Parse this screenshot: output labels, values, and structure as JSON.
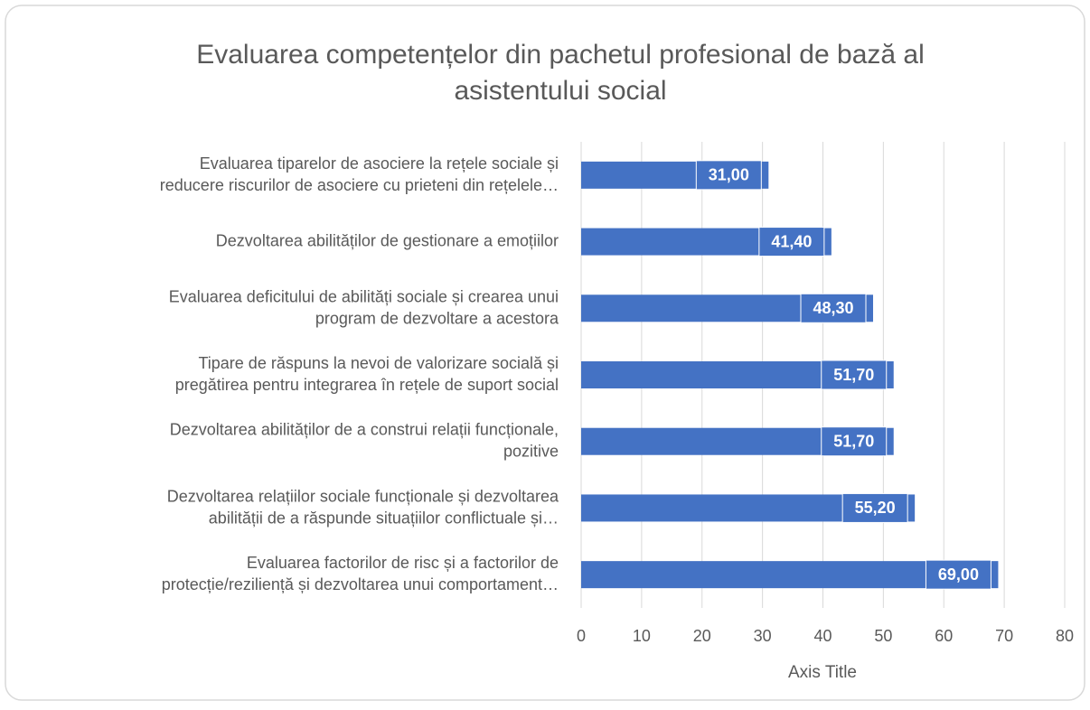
{
  "chart_data": {
    "type": "hbar",
    "title": "Evaluarea competențelor din pachetul profesional de bază al\nasistentului social",
    "categories": [
      "Evaluarea tiparelor de asociere la rețele sociale și\nreducere riscurilor de asociere cu prieteni din rețelele…",
      "Dezvoltarea abilităților de gestionare a emoțiilor",
      "Evaluarea deficitului de abilități sociale și crearea unui\nprogram de dezvoltare a acestora",
      "Tipare de răspuns la nevoi de valorizare socială și\npregătirea pentru integrarea în rețele de suport social",
      "Dezvoltarea abilităților de a construi relații funcționale,\npozitive",
      "Dezvoltarea relațiilor sociale funcționale și dezvoltarea\nabilității de a răspunde situațiilor conflictuale și…",
      "Evaluarea factorilor de risc și a factorilor de\nprotecție/reziliență și dezvoltarea unui comportament…"
    ],
    "values": [
      31,
      41.4,
      48.3,
      51.7,
      51.7,
      55.2,
      69
    ],
    "value_labels": [
      "31,00",
      "41,40",
      "48,30",
      "51,70",
      "51,70",
      "55,20",
      "69,00"
    ],
    "color": "#4472c4",
    "xlabel": "Axis Title",
    "xlim": [
      0,
      80
    ],
    "xticks": [
      0,
      10,
      20,
      30,
      40,
      50,
      60,
      70,
      80
    ],
    "grid": true
  }
}
